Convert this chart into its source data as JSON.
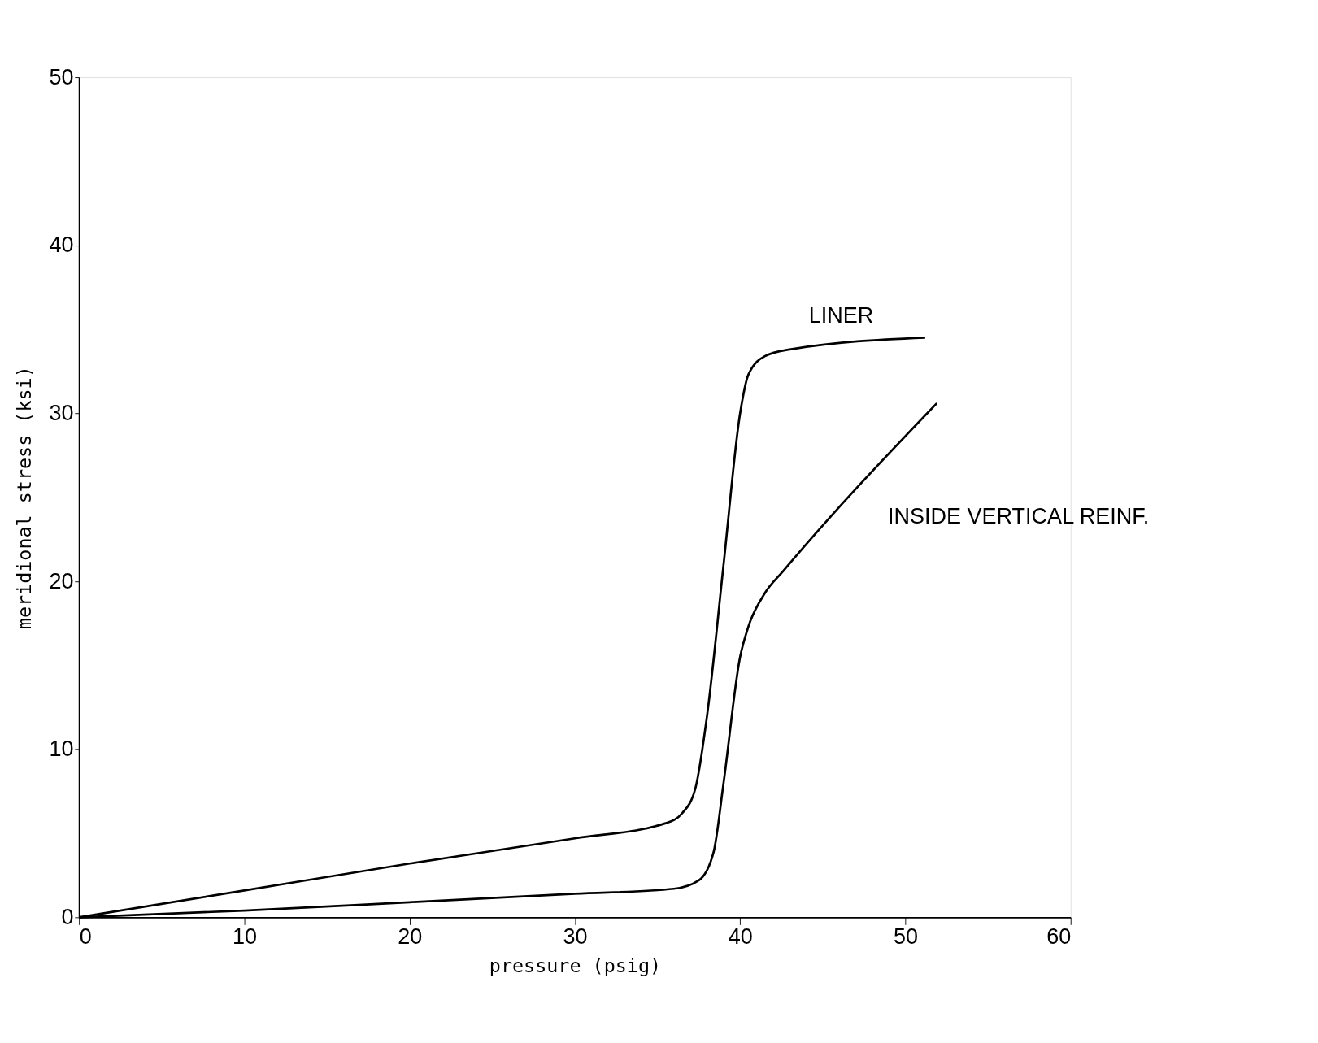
{
  "chart_data": {
    "type": "line",
    "xlabel": "pressure (psig)",
    "ylabel": "meridional stress (ksi)",
    "xlim": [
      0,
      60
    ],
    "xticks": [
      0,
      10,
      20,
      30,
      40,
      50,
      60
    ],
    "ylim": [
      0,
      50
    ],
    "yticks": [
      0,
      10,
      20,
      30,
      40,
      50
    ],
    "grid": false,
    "marker": "none",
    "line_style": "solid",
    "series": [
      {
        "name": "LINER",
        "color": "#000000",
        "x": [
          0,
          10,
          20,
          30,
          35.5,
          36.5,
          37.3,
          38,
          39,
          40,
          40.5,
          41.5,
          43,
          51.2
        ],
        "values": [
          0,
          1.6,
          3.2,
          4.7,
          5.6,
          6.2,
          7.7,
          12,
          21,
          30,
          32.3,
          33.4,
          33.8,
          34.5
        ]
      },
      {
        "name": "INSIDE VERTICAL REINF.",
        "color": "#000000",
        "x": [
          0,
          10,
          20,
          30,
          36,
          37.5,
          38.4,
          39,
          40,
          40.5,
          41.5,
          42.6,
          51.9
        ],
        "values": [
          0,
          0.4,
          0.9,
          1.4,
          1.7,
          2.2,
          3.9,
          8,
          15.5,
          17.3,
          19.3,
          20.6,
          30.6
        ]
      }
    ]
  }
}
